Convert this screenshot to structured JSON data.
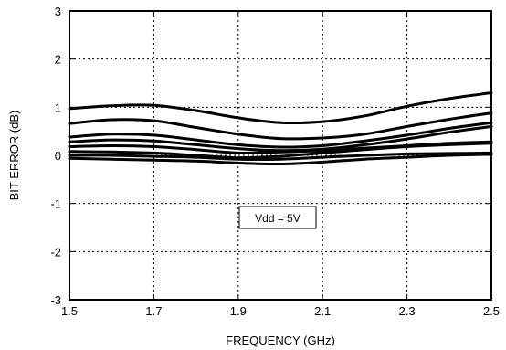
{
  "chart_data": {
    "type": "line",
    "title": "",
    "xlabel": "FREQUENCY (GHz)",
    "ylabel": "BIT ERROR (dB)",
    "xlim": [
      1.5,
      2.5
    ],
    "ylim": [
      -3,
      3
    ],
    "xticks": [
      "1.5",
      "1.7",
      "1.9",
      "2.1",
      "2.3",
      "2.5"
    ],
    "yticks": [
      "-3",
      "-2",
      "-1",
      "0",
      "1",
      "2",
      "3"
    ],
    "grid": true,
    "grid_style": "dotted",
    "annotation": "Vdd = 5V",
    "x": [
      1.5,
      1.6,
      1.7,
      1.8,
      1.9,
      2.0,
      2.1,
      2.2,
      2.3,
      2.4,
      2.5
    ],
    "series": [
      {
        "values": [
          0.97,
          1.03,
          1.04,
          0.93,
          0.78,
          0.68,
          0.7,
          0.82,
          1.02,
          1.18,
          1.3
        ]
      },
      {
        "values": [
          0.66,
          0.74,
          0.72,
          0.58,
          0.44,
          0.35,
          0.36,
          0.44,
          0.6,
          0.75,
          0.88
        ]
      },
      {
        "values": [
          0.38,
          0.44,
          0.42,
          0.32,
          0.22,
          0.17,
          0.2,
          0.3,
          0.42,
          0.56,
          0.68
        ]
      },
      {
        "values": [
          0.28,
          0.32,
          0.3,
          0.22,
          0.14,
          0.1,
          0.13,
          0.22,
          0.34,
          0.48,
          0.6
        ]
      },
      {
        "values": [
          0.18,
          0.2,
          0.18,
          0.12,
          0.05,
          0.07,
          0.1,
          0.15,
          0.2,
          0.25,
          0.28
        ]
      },
      {
        "values": [
          0.08,
          0.07,
          0.05,
          0.0,
          -0.05,
          -0.02,
          0.05,
          0.12,
          0.18,
          0.22,
          0.25
        ]
      },
      {
        "values": [
          0.0,
          0.0,
          -0.02,
          -0.04,
          -0.08,
          -0.08,
          -0.04,
          0.0,
          0.03,
          0.04,
          0.05
        ]
      },
      {
        "values": [
          -0.06,
          -0.08,
          -0.1,
          -0.12,
          -0.16,
          -0.18,
          -0.14,
          -0.08,
          -0.04,
          0.0,
          0.02
        ]
      }
    ]
  }
}
